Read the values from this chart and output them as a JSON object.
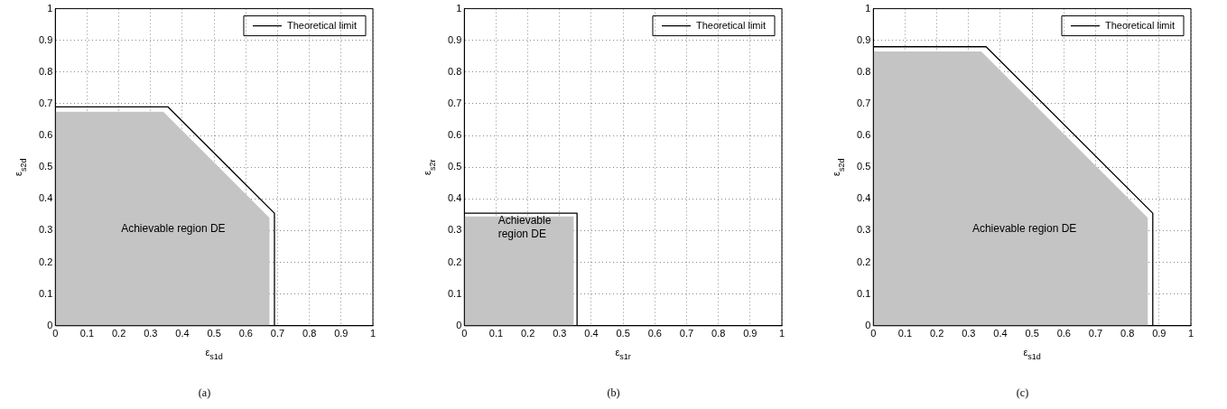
{
  "chart_data": [
    {
      "type": "line",
      "xlabel": "ε$_{s1d}$",
      "ylabel": "ε$_{s2d}$",
      "xlim": [
        0,
        1
      ],
      "ylim": [
        0,
        1
      ],
      "xticks": [
        0,
        0.1,
        0.2,
        0.3,
        0.4,
        0.5,
        0.6,
        0.7,
        0.8,
        0.9,
        1
      ],
      "yticks": [
        0,
        0.1,
        0.2,
        0.3,
        0.4,
        0.5,
        0.6,
        0.7,
        0.8,
        0.9,
        1
      ],
      "grid": true,
      "legend": "top right",
      "series": [
        {
          "type": "area",
          "color": "#c4c4c4",
          "x": [
            0,
            0.34,
            0.675,
            0.675
          ],
          "values": [
            0.675,
            0.675,
            0.34,
            0
          ]
        },
        {
          "type": "line",
          "name": "Theoretical limit",
          "color": "#000000",
          "x": [
            0,
            0.355,
            0.69,
            0.69
          ],
          "values": [
            0.69,
            0.69,
            0.355,
            0
          ]
        }
      ],
      "annotations": [
        "Achievable region DE",
        "(a)"
      ]
    },
    {
      "type": "line",
      "xlabel": "ε$_{s1r}$",
      "ylabel": "ε$_{s2r}$",
      "xlim": [
        0,
        1
      ],
      "ylim": [
        0,
        1
      ],
      "xticks": [
        0,
        0.1,
        0.2,
        0.3,
        0.4,
        0.5,
        0.6,
        0.7,
        0.8,
        0.9,
        1
      ],
      "yticks": [
        0,
        0.1,
        0.2,
        0.3,
        0.4,
        0.5,
        0.6,
        0.7,
        0.8,
        0.9,
        1
      ],
      "grid": true,
      "legend": "top right",
      "series": [
        {
          "type": "area",
          "color": "#c4c4c4",
          "x": [
            0,
            0.345,
            0.345
          ],
          "values": [
            0.345,
            0.345,
            0
          ]
        },
        {
          "type": "line",
          "name": "Theoretical limit",
          "color": "#000000",
          "x": [
            0,
            0.355,
            0.355
          ],
          "values": [
            0.355,
            0.355,
            0
          ]
        }
      ],
      "annotations": [
        "Achievable region DE",
        "(b)"
      ]
    },
    {
      "type": "line",
      "xlabel": "ε$_{s1d}$",
      "ylabel": "ε$_{s2d}$",
      "xlim": [
        0,
        1
      ],
      "ylim": [
        0,
        1
      ],
      "xticks": [
        0,
        0.1,
        0.2,
        0.3,
        0.4,
        0.5,
        0.6,
        0.7,
        0.8,
        0.9,
        1
      ],
      "yticks": [
        0,
        0.1,
        0.2,
        0.3,
        0.4,
        0.5,
        0.6,
        0.7,
        0.8,
        0.9,
        1
      ],
      "grid": true,
      "legend": "top right",
      "series": [
        {
          "type": "area",
          "color": "#c4c4c4",
          "x": [
            0,
            0.34,
            0.865,
            0.865
          ],
          "values": [
            0.865,
            0.865,
            0.34,
            0
          ]
        },
        {
          "type": "line",
          "name": "Theoretical limit",
          "color": "#000000",
          "x": [
            0,
            0.355,
            0.88,
            0.88
          ],
          "values": [
            0.88,
            0.88,
            0.355,
            0
          ]
        }
      ],
      "annotations": [
        "Achievable region DE",
        "(c)"
      ]
    }
  ]
}
